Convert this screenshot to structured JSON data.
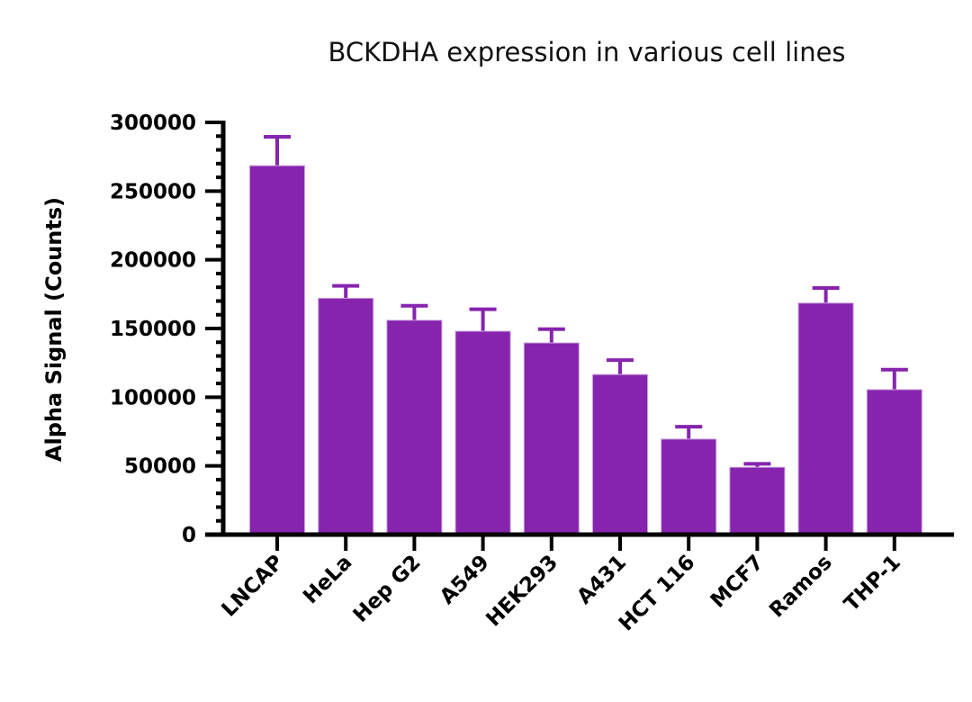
{
  "chart_data": {
    "type": "bar",
    "title": "BCKDHA expression in various cell lines",
    "xlabel": "",
    "ylabel": "Alpha Signal (Counts)",
    "ylim": [
      0,
      300000
    ],
    "yticks": [
      "0",
      "50000",
      "100000",
      "150000",
      "200000",
      "250000",
      "300000"
    ],
    "y_minor_tick_step": 10000,
    "grid": false,
    "bar_color": "#8624AE",
    "categories": [
      "LNCAP",
      "HeLa",
      "Hep G2",
      "A549",
      "HEK293",
      "A431",
      "HCT 116",
      "MCF7",
      "Ramos",
      "THP-1"
    ],
    "values": [
      268500,
      172000,
      156000,
      148000,
      139500,
      116500,
      69500,
      49000,
      168500,
      105500
    ],
    "error_upper": [
      289500,
      181000,
      166500,
      164000,
      149500,
      127000,
      78500,
      51500,
      179500,
      120000
    ]
  }
}
